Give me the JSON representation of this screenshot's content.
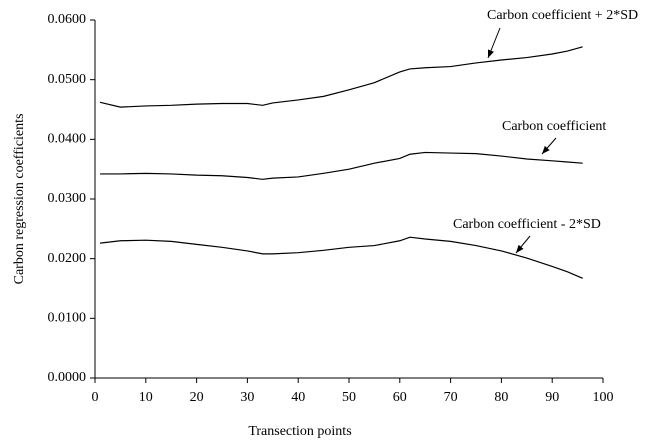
{
  "chart_data": {
    "type": "line",
    "x_label": "Transection points",
    "y_label": "Carbon regression coefficients",
    "x": [
      1,
      5,
      10,
      15,
      20,
      25,
      30,
      33,
      35,
      40,
      45,
      50,
      55,
      60,
      62,
      65,
      70,
      75,
      80,
      85,
      90,
      93,
      96
    ],
    "series": [
      {
        "name": "Carbon coefficient + 2*SD",
        "color": "#000000",
        "values": [
          0.0462,
          0.0454,
          0.0456,
          0.0457,
          0.0459,
          0.046,
          0.046,
          0.0457,
          0.0461,
          0.0466,
          0.0472,
          0.0483,
          0.0495,
          0.0513,
          0.0518,
          0.052,
          0.0522,
          0.0528,
          0.0533,
          0.0537,
          0.0543,
          0.0548,
          0.0555
        ]
      },
      {
        "name": "Carbon coefficient",
        "color": "#000000",
        "values": [
          0.0342,
          0.0342,
          0.0343,
          0.0342,
          0.034,
          0.0339,
          0.0336,
          0.0333,
          0.0335,
          0.0337,
          0.0343,
          0.035,
          0.036,
          0.0368,
          0.0375,
          0.0378,
          0.0377,
          0.0376,
          0.0372,
          0.0367,
          0.0364,
          0.0362,
          0.036
        ]
      },
      {
        "name": "Carbon coefficient - 2*SD",
        "color": "#000000",
        "values": [
          0.0226,
          0.023,
          0.0231,
          0.0229,
          0.0224,
          0.0219,
          0.0213,
          0.0208,
          0.0208,
          0.021,
          0.0214,
          0.0219,
          0.0222,
          0.023,
          0.0236,
          0.0233,
          0.0229,
          0.0222,
          0.0213,
          0.0201,
          0.0187,
          0.0178,
          0.0167
        ]
      }
    ],
    "xlim": [
      0,
      100
    ],
    "xticks": [
      0,
      10,
      20,
      30,
      40,
      50,
      60,
      70,
      80,
      90,
      100
    ],
    "ylim": [
      0,
      0.06
    ],
    "yticks": [
      {
        "value": 0,
        "label": "0.0000"
      },
      {
        "value": 0.01,
        "label": "0.0100"
      },
      {
        "value": 0.02,
        "label": "0.0200"
      },
      {
        "value": 0.03,
        "label": "0.0300"
      },
      {
        "value": 0.04,
        "label": "0.0400"
      },
      {
        "value": 0.05,
        "label": "0.0500"
      },
      {
        "value": 0.06,
        "label": "0.0600"
      }
    ],
    "grid": false
  }
}
